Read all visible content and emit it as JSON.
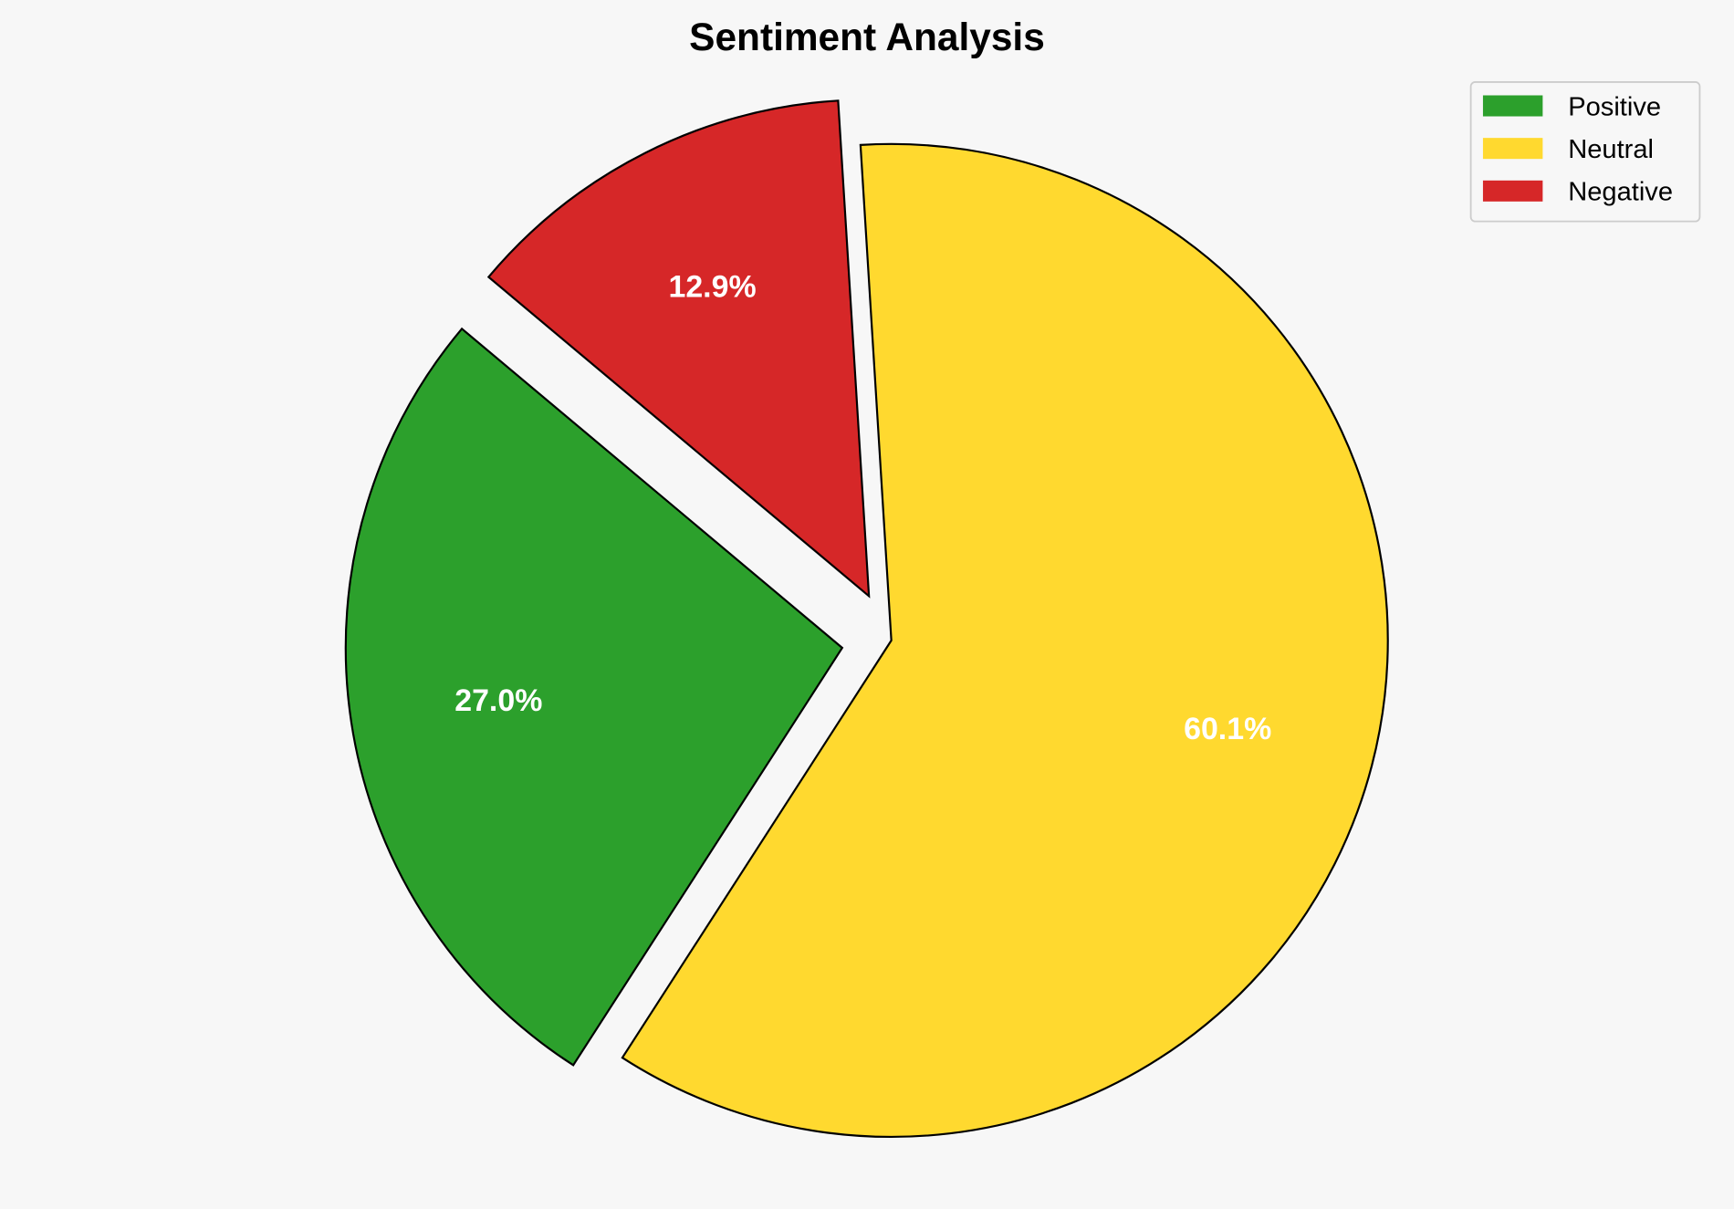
{
  "chart_data": {
    "type": "pie",
    "title": "Sentiment Analysis",
    "categories": [
      "Positive",
      "Neutral",
      "Negative"
    ],
    "values": [
      27.0,
      60.1,
      12.9
    ],
    "labels": [
      "27.0%",
      "60.1%",
      "12.9%"
    ],
    "colors": [
      "#2ca02c",
      "#ffd92f",
      "#d62728"
    ],
    "explode": [
      0.1,
      0,
      0.1
    ],
    "start_angle": 140,
    "direction": "counterclockwise",
    "legend_position": "top-right",
    "legend": [
      "Positive",
      "Neutral",
      "Negative"
    ]
  }
}
